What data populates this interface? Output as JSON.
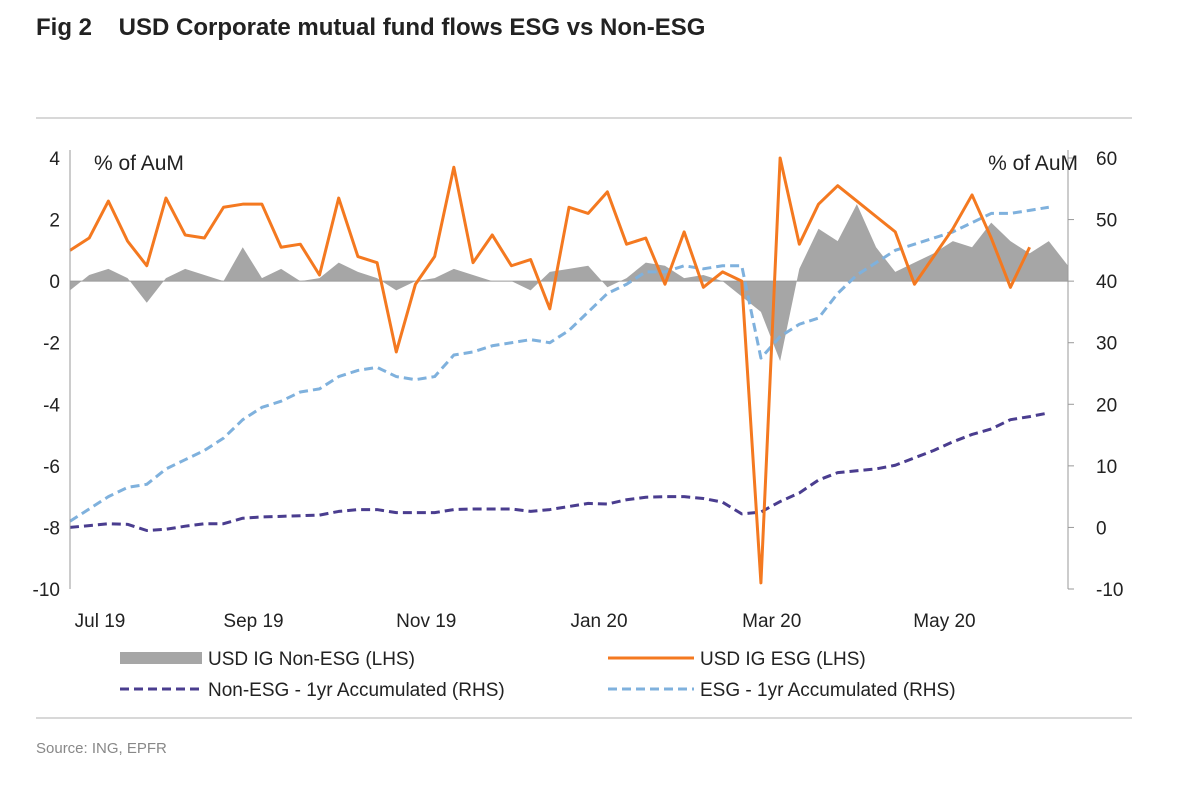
{
  "figure": {
    "title": "Fig 2    USD Corporate mutual fund flows ESG vs Non-ESG",
    "source": "Source: ING, EPFR"
  },
  "colors": {
    "non_esg_area": "#a6a6a6",
    "esg_line": "#f47920",
    "non_esg_accum": "#4a3d8f",
    "esg_accum": "#7fb1dd"
  },
  "chart_data": {
    "type": "line",
    "title": "",
    "x_tick_labels": [
      "Jul 19",
      "Sep 19",
      "Nov 19",
      "Jan 20",
      "Mar 20",
      "May 20"
    ],
    "x_tick_index": [
      0,
      8,
      17,
      26,
      35,
      44
    ],
    "left_axis": {
      "label": "% of AuM",
      "range": [
        -10,
        4
      ],
      "ticks": [
        4,
        2,
        0,
        -2,
        -4,
        -6,
        -8,
        -10
      ]
    },
    "right_axis": {
      "label": "% of AuM",
      "range": [
        -10,
        60
      ],
      "ticks": [
        60,
        50,
        40,
        30,
        20,
        10,
        0,
        -10
      ]
    },
    "grid": false,
    "legend": [
      "USD IG Non-ESG (LHS)",
      "USD IG ESG (LHS)",
      "Non-ESG - 1yr Accumulated (RHS)",
      "ESG - 1yr Accumulated (RHS)"
    ],
    "series": [
      {
        "name": "USD IG Non-ESG (LHS)",
        "type": "area",
        "axis": "left",
        "values": [
          -0.3,
          0.2,
          0.4,
          0.1,
          -0.7,
          0.1,
          0.4,
          0.2,
          0.0,
          1.1,
          0.1,
          0.4,
          0.0,
          0.1,
          0.6,
          0.3,
          0.1,
          -0.3,
          0.0,
          0.1,
          0.4,
          0.2,
          0.0,
          0.0,
          -0.3,
          0.3,
          0.4,
          0.5,
          -0.2,
          0.1,
          0.6,
          0.5,
          0.1,
          0.2,
          0.0,
          -0.5,
          -1.0,
          -2.6,
          0.4,
          1.7,
          1.3,
          2.5,
          1.1,
          0.3,
          0.6,
          0.9,
          1.3,
          1.1,
          1.9,
          1.3,
          0.9,
          1.3,
          0.5
        ]
      },
      {
        "name": "USD IG ESG (LHS)",
        "type": "line",
        "axis": "left",
        "values": [
          1.0,
          1.4,
          2.6,
          1.3,
          0.5,
          2.7,
          1.5,
          1.4,
          2.4,
          2.5,
          2.5,
          1.1,
          1.2,
          0.2,
          2.7,
          0.8,
          0.6,
          -2.3,
          -0.1,
          0.8,
          3.7,
          0.6,
          1.5,
          0.5,
          0.7,
          -0.9,
          2.4,
          2.2,
          2.9,
          1.2,
          1.4,
          -0.1,
          1.6,
          -0.2,
          0.3,
          0.0,
          -9.8,
          4.0,
          1.2,
          2.5,
          3.1,
          2.6,
          2.1,
          1.6,
          -0.1,
          0.8,
          1.7,
          2.8,
          1.4,
          -0.2,
          1.1
        ]
      },
      {
        "name": "Non-ESG - 1yr Accumulated (RHS)",
        "type": "line",
        "axis": "right",
        "values": [
          0,
          0.3,
          0.6,
          0.5,
          -0.5,
          -0.3,
          0.2,
          0.6,
          0.6,
          1.5,
          1.7,
          1.8,
          1.9,
          2.0,
          2.6,
          2.9,
          2.9,
          2.4,
          2.4,
          2.4,
          2.9,
          3.0,
          3.0,
          3.0,
          2.6,
          2.9,
          3.4,
          3.9,
          3.8,
          4.5,
          4.9,
          5.0,
          5.0,
          4.7,
          4.1,
          2.2,
          2.5,
          4.2,
          5.6,
          7.7,
          8.9,
          9.2,
          9.5,
          10.1,
          11.3,
          12.5,
          13.9,
          15.1,
          16.0,
          17.5,
          18.0,
          18.6
        ]
      },
      {
        "name": "ESG - 1yr Accumulated (RHS)",
        "type": "line",
        "axis": "right",
        "values": [
          1,
          3,
          5,
          6.5,
          7,
          9.5,
          11,
          12.5,
          14.5,
          17.5,
          19.5,
          20.5,
          22,
          22.5,
          24.5,
          25.5,
          26,
          24.5,
          24,
          24.5,
          28,
          28.5,
          29.5,
          30,
          30.5,
          30,
          32,
          35,
          38,
          39.5,
          41.5,
          41.5,
          42.5,
          42,
          42.5,
          42.5,
          27.5,
          31,
          33,
          34,
          38,
          41,
          43,
          45,
          46,
          47,
          48,
          49.5,
          51,
          51,
          51.5,
          52
        ]
      }
    ]
  }
}
